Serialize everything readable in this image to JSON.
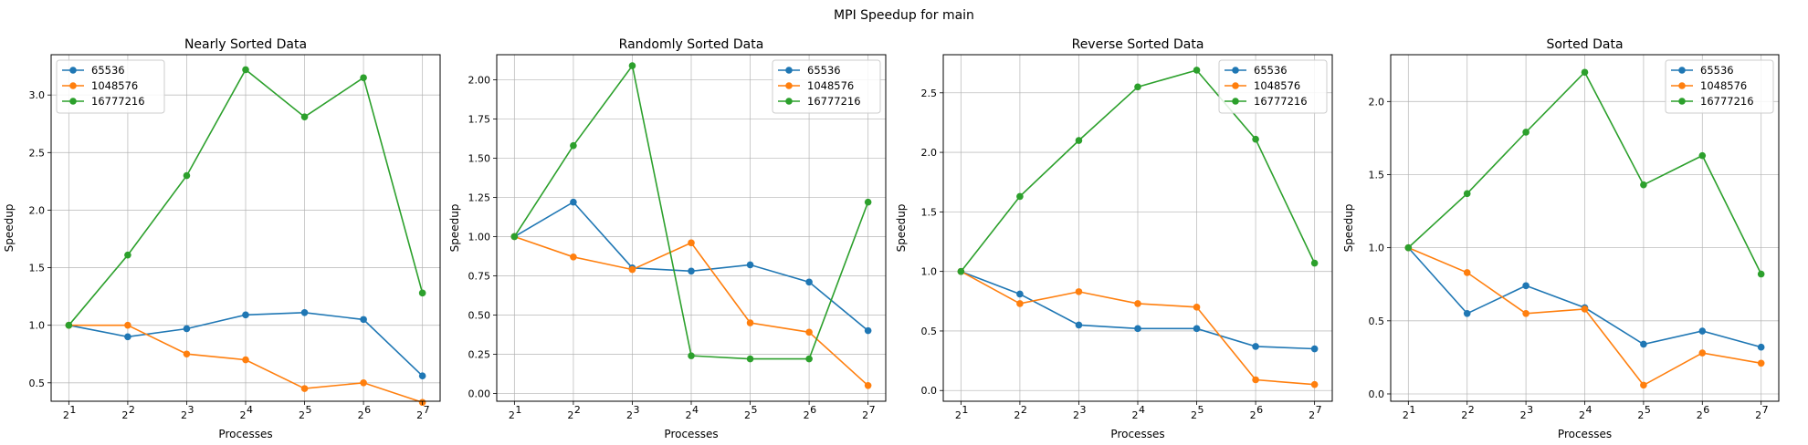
{
  "figure": {
    "title": "MPI Speedup for main"
  },
  "colors": {
    "65536": "#1f77b4",
    "1048576": "#ff7f0e",
    "16777216": "#2ca02c"
  },
  "chart_data": [
    {
      "type": "line",
      "title": "Nearly Sorted Data",
      "xlabel": "Processes",
      "ylabel": "Speedup",
      "x": [
        2,
        4,
        8,
        16,
        32,
        64,
        128
      ],
      "xscale": "log2",
      "x_tick_labels": [
        "2",
        "2",
        "2",
        "2",
        "2",
        "2",
        "2"
      ],
      "x_tick_exponents": [
        "1",
        "2",
        "3",
        "4",
        "5",
        "6",
        "7"
      ],
      "ylim": [
        0.34,
        3.35
      ],
      "yticks": [
        0.5,
        1.0,
        1.5,
        2.0,
        2.5,
        3.0
      ],
      "ytick_labels": [
        "0.5",
        "1.0",
        "1.5",
        "2.0",
        "2.5",
        "3.0"
      ],
      "grid": true,
      "legend_position": "top-left",
      "series": [
        {
          "name": "65536",
          "values": [
            1.0,
            0.9,
            0.97,
            1.09,
            1.11,
            1.05,
            0.56
          ]
        },
        {
          "name": "1048576",
          "values": [
            1.0,
            1.0,
            0.75,
            0.7,
            0.45,
            0.5,
            0.33
          ]
        },
        {
          "name": "16777216",
          "values": [
            1.0,
            1.61,
            2.3,
            3.22,
            2.81,
            3.15,
            1.28
          ]
        }
      ]
    },
    {
      "type": "line",
      "title": "Randomly Sorted Data",
      "xlabel": "Processes",
      "ylabel": "Speedup",
      "x": [
        2,
        4,
        8,
        16,
        32,
        64,
        128
      ],
      "xscale": "log2",
      "x_tick_labels": [
        "2",
        "2",
        "2",
        "2",
        "2",
        "2",
        "2"
      ],
      "x_tick_exponents": [
        "1",
        "2",
        "3",
        "4",
        "5",
        "6",
        "7"
      ],
      "ylim": [
        -0.05,
        2.16
      ],
      "yticks": [
        0.0,
        0.25,
        0.5,
        0.75,
        1.0,
        1.25,
        1.5,
        1.75,
        2.0
      ],
      "ytick_labels": [
        "0.00",
        "0.25",
        "0.50",
        "0.75",
        "1.00",
        "1.25",
        "1.50",
        "1.75",
        "2.00"
      ],
      "grid": true,
      "legend_position": "top-right",
      "series": [
        {
          "name": "65536",
          "values": [
            1.0,
            1.22,
            0.8,
            0.78,
            0.82,
            0.71,
            0.4
          ]
        },
        {
          "name": "1048576",
          "values": [
            1.0,
            0.87,
            0.79,
            0.96,
            0.45,
            0.39,
            0.05
          ]
        },
        {
          "name": "16777216",
          "values": [
            1.0,
            1.58,
            2.09,
            0.24,
            0.22,
            0.22,
            1.22
          ]
        }
      ]
    },
    {
      "type": "line",
      "title": "Reverse Sorted Data",
      "xlabel": "Processes",
      "ylabel": "Speedup",
      "x": [
        2,
        4,
        8,
        16,
        32,
        64,
        128
      ],
      "xscale": "log2",
      "x_tick_labels": [
        "2",
        "2",
        "2",
        "2",
        "2",
        "2",
        "2"
      ],
      "x_tick_exponents": [
        "1",
        "2",
        "3",
        "4",
        "5",
        "6",
        "7"
      ],
      "ylim": [
        -0.09,
        2.82
      ],
      "yticks": [
        0.0,
        0.5,
        1.0,
        1.5,
        2.0,
        2.5
      ],
      "ytick_labels": [
        "0.0",
        "0.5",
        "1.0",
        "1.5",
        "2.0",
        "2.5"
      ],
      "grid": true,
      "legend_position": "top-right",
      "series": [
        {
          "name": "65536",
          "values": [
            1.0,
            0.81,
            0.55,
            0.52,
            0.52,
            0.37,
            0.35
          ]
        },
        {
          "name": "1048576",
          "values": [
            1.0,
            0.73,
            0.83,
            0.73,
            0.7,
            0.09,
            0.05
          ]
        },
        {
          "name": "16777216",
          "values": [
            1.0,
            1.63,
            2.1,
            2.55,
            2.69,
            2.11,
            1.07
          ]
        }
      ]
    },
    {
      "type": "line",
      "title": "Sorted Data",
      "xlabel": "Processes",
      "ylabel": "Speedup",
      "x": [
        2,
        4,
        8,
        16,
        32,
        64,
        128
      ],
      "xscale": "log2",
      "x_tick_labels": [
        "2",
        "2",
        "2",
        "2",
        "2",
        "2",
        "2"
      ],
      "x_tick_exponents": [
        "1",
        "2",
        "3",
        "4",
        "5",
        "6",
        "7"
      ],
      "ylim": [
        -0.05,
        2.32
      ],
      "yticks": [
        0.0,
        0.5,
        1.0,
        1.5,
        2.0
      ],
      "ytick_labels": [
        "0.0",
        "0.5",
        "1.0",
        "1.5",
        "2.0"
      ],
      "grid": true,
      "legend_position": "top-right",
      "series": [
        {
          "name": "65536",
          "values": [
            1.0,
            0.55,
            0.74,
            0.59,
            0.34,
            0.43,
            0.32
          ]
        },
        {
          "name": "1048576",
          "values": [
            1.0,
            0.83,
            0.55,
            0.58,
            0.06,
            0.28,
            0.21
          ]
        },
        {
          "name": "16777216",
          "values": [
            1.0,
            1.37,
            1.79,
            2.2,
            1.43,
            1.63,
            0.82
          ]
        }
      ]
    }
  ]
}
